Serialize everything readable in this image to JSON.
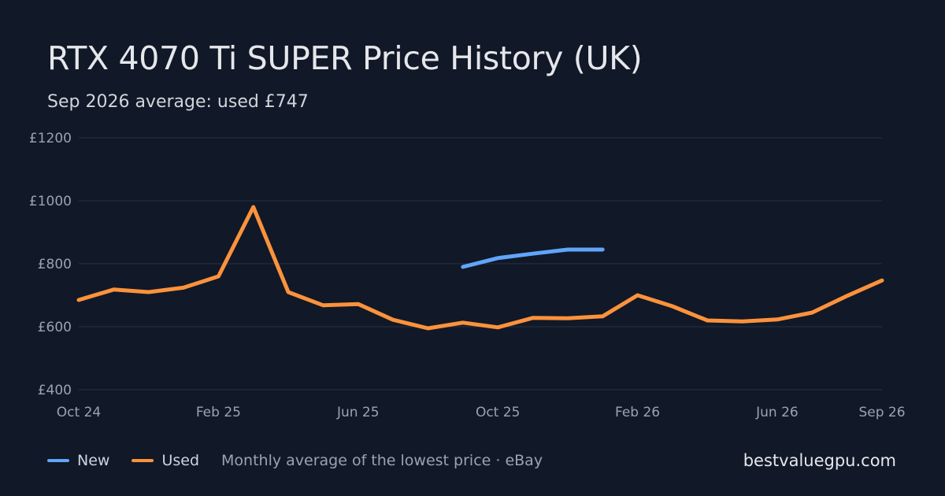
{
  "title": "RTX 4070 Ti SUPER Price History (UK)",
  "subtitle": "Sep 2026 average: used £747",
  "brand": "bestvaluegpu.com",
  "legend": {
    "items": [
      {
        "label": "New",
        "color": "#60a5fa"
      },
      {
        "label": "Used",
        "color": "#fb923c"
      }
    ],
    "note": "Monthly average of the lowest price · eBay"
  },
  "chart_data": {
    "type": "line",
    "title": "RTX 4070 Ti SUPER Price History (UK)",
    "x": [
      "2024-10",
      "2024-11",
      "2024-12",
      "2025-01",
      "2025-02",
      "2025-03",
      "2025-04",
      "2025-05",
      "2025-06",
      "2025-07",
      "2025-08",
      "2025-09",
      "2025-10",
      "2025-11",
      "2025-12",
      "2026-01",
      "2026-02",
      "2026-03",
      "2026-04",
      "2026-05",
      "2026-06",
      "2026-07",
      "2026-08",
      "2026-09"
    ],
    "x_ticks": [
      {
        "index": 0,
        "label": "Oct 24"
      },
      {
        "index": 4,
        "label": "Feb 25"
      },
      {
        "index": 8,
        "label": "Jun 25"
      },
      {
        "index": 12,
        "label": "Oct 25"
      },
      {
        "index": 16,
        "label": "Feb 26"
      },
      {
        "index": 20,
        "label": "Jun 26"
      },
      {
        "index": 23,
        "label": "Sep 26"
      }
    ],
    "y_ticks": [
      "£400",
      "£600",
      "£800",
      "£1000",
      "£1200"
    ],
    "y_tick_values": [
      400,
      600,
      800,
      1000,
      1200
    ],
    "ylim": [
      400,
      1200
    ],
    "grid": true,
    "legend_position": "bottom-left",
    "series": [
      {
        "name": "New",
        "color": "#60a5fa",
        "values": [
          null,
          null,
          null,
          null,
          null,
          null,
          null,
          null,
          null,
          null,
          null,
          790,
          818,
          832,
          845,
          845,
          null,
          null,
          null,
          null,
          null,
          null,
          null,
          null
        ]
      },
      {
        "name": "Used",
        "color": "#fb923c",
        "values": [
          685,
          718,
          710,
          724,
          760,
          980,
          710,
          668,
          672,
          622,
          595,
          613,
          598,
          628,
          627,
          633,
          700,
          665,
          620,
          617,
          623,
          645,
          698,
          747
        ]
      }
    ]
  }
}
